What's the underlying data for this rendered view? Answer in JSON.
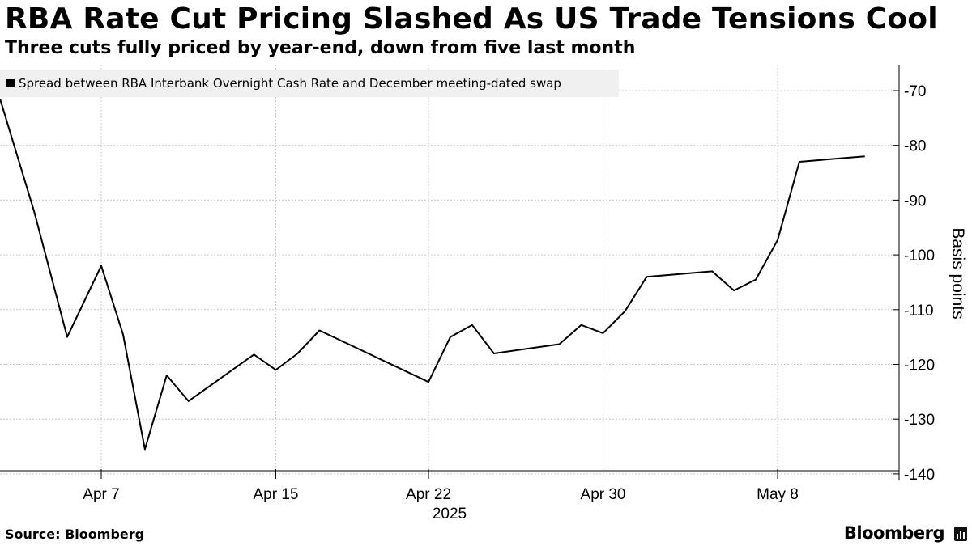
{
  "header": {
    "title": "RBA Rate Cut Pricing Slashed As US Trade Tensions Cool",
    "subtitle": "Three cuts fully priced by year-end, down from five last month"
  },
  "footer": {
    "source": "Source: Bloomberg",
    "brand": "Bloomberg"
  },
  "chart_data": {
    "type": "line",
    "title": "RBA Rate Cut Pricing Slashed As US Trade Tensions Cool",
    "subtitle": "Three cuts fully priced by year-end, down from five last month",
    "xlabel": "2025",
    "ylabel": "Basis points",
    "x_ticks": [
      {
        "date": "2025-04-07",
        "label": "Apr 7"
      },
      {
        "date": "2025-04-15",
        "label": "Apr 15"
      },
      {
        "date": "2025-04-22",
        "label": "Apr 22"
      },
      {
        "date": "2025-04-30",
        "label": "Apr 30"
      },
      {
        "date": "2025-05-08",
        "label": "May 8"
      }
    ],
    "y_ticks": [
      -70,
      -80,
      -90,
      -100,
      -110,
      -120,
      -130,
      -140
    ],
    "ylim": [
      -140,
      -67
    ],
    "xlim": [
      "2025-04-04",
      "2025-05-11"
    ],
    "grid": true,
    "y_axis_side": "right",
    "legend_position": "top-left",
    "series": [
      {
        "name": "Spread between RBA Interbank Overnight Cash Rate and December meeting-dated swap",
        "color": "#000000",
        "x": [
          "2025-04-04",
          "2025-04-03",
          "2025-04-04",
          "2025-04-07",
          "2025-04-08",
          "2025-04-09",
          "2025-04-10",
          "2025-04-11",
          "2025-04-14",
          "2025-04-15",
          "2025-04-16",
          "2025-04-17",
          "2025-04-22",
          "2025-04-23",
          "2025-04-24",
          "2025-04-25",
          "2025-04-28",
          "2025-04-29",
          "2025-04-30",
          "2025-05-01",
          "2025-05-02",
          "2025-05-05",
          "2025-05-06",
          "2025-05-07",
          "2025-05-08",
          "2025-05-09",
          "2025-05-12"
        ],
        "values": [
          -71.5,
          -92,
          -115,
          -102,
          -114.5,
          -135.5,
          -122,
          -126.7,
          -118.2,
          -121,
          -118,
          -113.8,
          -123.2,
          -115,
          -112.8,
          -118,
          -116.3,
          -112.8,
          -114.3,
          -110.3,
          -104,
          -103,
          -106.5,
          -104.5,
          -97.3,
          -83,
          -82
        ]
      }
    ]
  }
}
